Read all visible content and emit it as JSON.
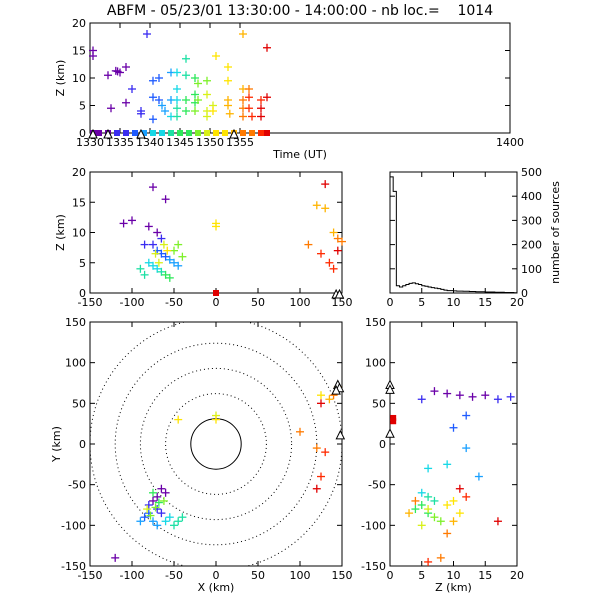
{
  "title": "ABFM - 05/23/01 13:30:00 - 14:00:00 - nb loc.=    1014",
  "colors": {
    "palette": [
      "#6a00a8",
      "#6a00a8",
      "#3a2df0",
      "#1e5bff",
      "#1aa0ff",
      "#16d8e6",
      "#1de0a4",
      "#2ee85a",
      "#7ef02a",
      "#d8f018",
      "#ffe400",
      "#ffb400",
      "#ff7a00",
      "#ff2a00",
      "#e00000"
    ],
    "axis": "#000000",
    "station": "#000000"
  },
  "chart_data": [
    {
      "id": "time_height",
      "type": "scatter",
      "xlabel": "Time (UT)",
      "ylabel": "Z (km)",
      "xlim": [
        1330,
        1400
      ],
      "ylim": [
        0,
        20
      ],
      "xticks": [
        "1330",
        "1335",
        "1340",
        "1345",
        "1350",
        "1355",
        "1400"
      ],
      "yticks": [
        "0",
        "5",
        "10",
        "15",
        "20"
      ],
      "points": [
        [
          1330.5,
          15
        ],
        [
          1330.5,
          14
        ],
        [
          1333,
          10.5
        ],
        [
          1333.5,
          4.5
        ],
        [
          1334.3,
          11.3
        ],
        [
          1334.6,
          11.2
        ],
        [
          1335,
          11
        ],
        [
          1336,
          12
        ],
        [
          1336,
          5.5
        ],
        [
          1337,
          8
        ],
        [
          1338.5,
          3.5
        ],
        [
          1338.5,
          4
        ],
        [
          1339.5,
          18
        ],
        [
          1340.5,
          9.5
        ],
        [
          1340.5,
          6.5
        ],
        [
          1340.5,
          2.5
        ],
        [
          1341.5,
          10
        ],
        [
          1341.5,
          6
        ],
        [
          1342,
          5
        ],
        [
          1342.5,
          4
        ],
        [
          1343.5,
          11
        ],
        [
          1343.5,
          6
        ],
        [
          1343.5,
          3
        ],
        [
          1344.5,
          11
        ],
        [
          1344.5,
          8
        ],
        [
          1344.5,
          6
        ],
        [
          1344.5,
          4.5
        ],
        [
          1344.5,
          3
        ],
        [
          1346,
          13.5
        ],
        [
          1346,
          10.5
        ],
        [
          1346,
          6
        ],
        [
          1346,
          4
        ],
        [
          1347.5,
          10
        ],
        [
          1347.5,
          7
        ],
        [
          1347.5,
          5.5
        ],
        [
          1347.5,
          4
        ],
        [
          1348,
          9
        ],
        [
          1348,
          6
        ],
        [
          1349.5,
          9.5
        ],
        [
          1349.5,
          7
        ],
        [
          1349.5,
          4
        ],
        [
          1349.5,
          3
        ],
        [
          1350.5,
          5
        ],
        [
          1350.5,
          4
        ],
        [
          1351,
          14
        ],
        [
          1353,
          12
        ],
        [
          1353,
          9.5
        ],
        [
          1353,
          6
        ],
        [
          1353,
          5
        ],
        [
          1353.3,
          3.5
        ],
        [
          1355.5,
          18
        ],
        [
          1355.5,
          8
        ],
        [
          1355.5,
          6
        ],
        [
          1355.5,
          4.5
        ],
        [
          1355.5,
          3
        ],
        [
          1356.5,
          8
        ],
        [
          1356.5,
          6.5
        ],
        [
          1356.5,
          4.5
        ],
        [
          1357,
          3
        ],
        [
          1358.5,
          6
        ],
        [
          1358.5,
          4.5
        ],
        [
          1358.5,
          3
        ],
        [
          1359.5,
          15.5
        ],
        [
          1359.5,
          6.5
        ]
      ],
      "ground_points": [
        1330.5,
        1331.5,
        1333,
        1334.5,
        1336,
        1337.5,
        1339,
        1340.5,
        1342,
        1343.5,
        1345,
        1346.5,
        1348,
        1349.5,
        1351,
        1352.5,
        1354,
        1355.5,
        1357,
        1358.5,
        1359.5
      ],
      "stations_x": [
        1330.5,
        1333,
        1338.5,
        1354
      ]
    },
    {
      "id": "x_height",
      "type": "scatter",
      "xlabel": "",
      "ylabel": "Z (km)",
      "xlim": [
        -150,
        150
      ],
      "ylim": [
        0,
        20
      ],
      "xticks": [
        "-150",
        "-100",
        "-50",
        "0",
        "50",
        "100",
        "150"
      ],
      "yticks": [
        "0",
        "5",
        "10",
        "15",
        "20"
      ],
      "points": [
        [
          -75,
          17.5
        ],
        [
          -60,
          15.5
        ],
        [
          -110,
          11.5
        ],
        [
          -100,
          12
        ],
        [
          -80,
          11
        ],
        [
          -70,
          10
        ],
        [
          -65,
          9
        ],
        [
          -85,
          8
        ],
        [
          -75,
          8
        ],
        [
          -70,
          7
        ],
        [
          -65,
          6.5
        ],
        [
          -60,
          6
        ],
        [
          -55,
          5.5
        ],
        [
          -50,
          5
        ],
        [
          -45,
          4.5
        ],
        [
          -80,
          5
        ],
        [
          -75,
          4.5
        ],
        [
          -70,
          4
        ],
        [
          -65,
          3.5
        ],
        [
          -85,
          3
        ],
        [
          -90,
          4
        ],
        [
          -60,
          3
        ],
        [
          -55,
          2.5
        ],
        [
          -50,
          7
        ],
        [
          -45,
          8
        ],
        [
          -40,
          6
        ],
        [
          -72,
          6.5
        ],
        [
          -68,
          5
        ],
        [
          -62,
          8
        ],
        [
          -58,
          7
        ],
        [
          0,
          11.5
        ],
        [
          0,
          11
        ],
        [
          120,
          14.5
        ],
        [
          130,
          14
        ],
        [
          140,
          10
        ],
        [
          145,
          9
        ],
        [
          150,
          8.5
        ],
        [
          110,
          8
        ],
        [
          125,
          6.5
        ],
        [
          135,
          5
        ],
        [
          140,
          4
        ],
        [
          130,
          18
        ],
        [
          145,
          7
        ]
      ],
      "ground_points": [
        0
      ],
      "stations_x": [
        143,
        147
      ]
    },
    {
      "id": "height_histogram",
      "type": "line",
      "xlabel": "",
      "ylabel": "number of sources",
      "xlim": [
        0,
        20
      ],
      "ylim": [
        0,
        500
      ],
      "xticks": [
        "0",
        "5",
        "10",
        "15",
        "20"
      ],
      "yticks": [
        "0",
        "100",
        "200",
        "300",
        "400",
        "500"
      ],
      "x": [
        0,
        0.5,
        1,
        1.5,
        2,
        2.5,
        3,
        3.5,
        4,
        4.5,
        5,
        5.5,
        6,
        6.5,
        7,
        7.5,
        8,
        8.5,
        9,
        9.5,
        10,
        10.5,
        11,
        11.5,
        12,
        12.5,
        13,
        13.5,
        14,
        14.5,
        15,
        15.5,
        16,
        16.5,
        17,
        17.5,
        18,
        18.5,
        19,
        19.5,
        20
      ],
      "values": [
        480,
        420,
        30,
        25,
        30,
        35,
        40,
        42,
        38,
        35,
        30,
        28,
        25,
        22,
        20,
        18,
        15,
        12,
        10,
        10,
        9,
        8,
        8,
        7,
        7,
        6,
        6,
        5,
        5,
        5,
        4,
        4,
        4,
        3,
        3,
        3,
        2,
        2,
        2,
        1,
        0
      ]
    },
    {
      "id": "plan_view",
      "type": "scatter",
      "xlabel": "X (km)",
      "ylabel": "Y (km)",
      "xlim": [
        -150,
        150
      ],
      "ylim": [
        -150,
        150
      ],
      "xticks": [
        "-150",
        "-100",
        "-50",
        "0",
        "50",
        "100",
        "150"
      ],
      "yticks": [
        "-150",
        "-100",
        "-50",
        "0",
        "50",
        "100",
        "150"
      ],
      "rings_km": [
        30,
        60,
        90,
        120,
        150
      ],
      "points": [
        [
          -120,
          -140
        ],
        [
          -65,
          -55
        ],
        [
          -60,
          -60
        ],
        [
          -70,
          -65
        ],
        [
          -75,
          -70
        ],
        [
          -80,
          -75
        ],
        [
          -70,
          -80
        ],
        [
          -65,
          -85
        ],
        [
          -80,
          -85
        ],
        [
          -85,
          -90
        ],
        [
          -90,
          -95
        ],
        [
          -75,
          -95
        ],
        [
          -70,
          -100
        ],
        [
          -60,
          -95
        ],
        [
          -55,
          -90
        ],
        [
          -50,
          -100
        ],
        [
          -45,
          -95
        ],
        [
          -40,
          -90
        ],
        [
          -75,
          -60
        ],
        [
          -68,
          -72
        ],
        [
          -72,
          -78
        ],
        [
          -62,
          -70
        ],
        [
          -78,
          -88
        ],
        [
          -82,
          -80
        ],
        [
          0,
          35
        ],
        [
          0,
          30
        ],
        [
          -45,
          30
        ],
        [
          125,
          60
        ],
        [
          135,
          55
        ],
        [
          145,
          70
        ],
        [
          140,
          60
        ],
        [
          100,
          15
        ],
        [
          120,
          -5
        ],
        [
          130,
          -10
        ],
        [
          125,
          -40
        ],
        [
          120,
          -55
        ],
        [
          125,
          50
        ]
      ],
      "ground_points": [
        [
          0,
          30
        ]
      ],
      "stations": [
        [
          145,
          72
        ],
        [
          147,
          68
        ],
        [
          143,
          65
        ],
        [
          148,
          10
        ]
      ]
    },
    {
      "id": "height_y",
      "type": "scatter",
      "xlabel": "Z (km)",
      "ylabel": "",
      "xlim": [
        0,
        20
      ],
      "ylim": [
        -150,
        150
      ],
      "xticks": [
        "0",
        "5",
        "10",
        "15",
        "20"
      ],
      "yticks": [
        "-150",
        "-100",
        "-50",
        "0",
        "50",
        "100",
        "150"
      ],
      "points": [
        [
          7,
          65
        ],
        [
          9,
          62
        ],
        [
          11,
          60
        ],
        [
          13,
          58
        ],
        [
          15,
          60
        ],
        [
          17,
          55
        ],
        [
          19,
          58
        ],
        [
          5,
          55
        ],
        [
          12,
          35
        ],
        [
          10,
          20
        ],
        [
          12,
          -5
        ],
        [
          14,
          -40
        ],
        [
          6,
          -30
        ],
        [
          9,
          -25
        ],
        [
          5,
          -60
        ],
        [
          6,
          -65
        ],
        [
          7,
          -70
        ],
        [
          5,
          -75
        ],
        [
          4,
          -80
        ],
        [
          6,
          -85
        ],
        [
          7,
          -90
        ],
        [
          8,
          -95
        ],
        [
          5,
          -100
        ],
        [
          6,
          -80
        ],
        [
          9,
          -75
        ],
        [
          10,
          -70
        ],
        [
          11,
          -85
        ],
        [
          10,
          -95
        ],
        [
          3,
          -85
        ],
        [
          4,
          -70
        ],
        [
          9,
          -110
        ],
        [
          8,
          -140
        ],
        [
          6,
          -145
        ],
        [
          12,
          -65
        ],
        [
          17,
          -95
        ],
        [
          11,
          -55
        ]
      ],
      "ground_points": [
        [
          0.5,
          32
        ],
        [
          0.5,
          28
        ]
      ],
      "stations": [
        [
          0,
          72
        ],
        [
          0,
          66
        ],
        [
          0,
          12
        ]
      ]
    }
  ]
}
